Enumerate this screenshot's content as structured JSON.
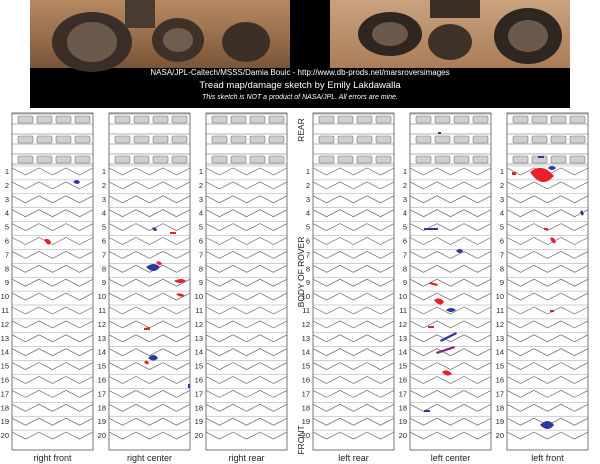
{
  "header": {
    "credit_line": "NASA/JPL-Caltech/MSSS/Damia Bouic - http://www.db-prods.net/marsroversimages",
    "title": "Tread map/damage sketch by Emily Lakdawalla",
    "disclaimer": "This sketch is NOT a product of NASA/JPL. All errors are mine."
  },
  "side_labels": {
    "rear": "REAR",
    "body": "BODY OF ROVER",
    "front": "FRONT"
  },
  "row_numbers": [
    "1",
    "2",
    "3",
    "4",
    "5",
    "6",
    "7",
    "8",
    "9",
    "10",
    "11",
    "12",
    "13",
    "14",
    "15",
    "16",
    "17",
    "18",
    "19",
    "20"
  ],
  "wheels": [
    {
      "id": "right-front",
      "label": "right front"
    },
    {
      "id": "right-center",
      "label": "right center"
    },
    {
      "id": "right-rear",
      "label": "right rear"
    },
    {
      "id": "left-rear",
      "label": "left rear"
    },
    {
      "id": "left-center",
      "label": "left center"
    },
    {
      "id": "left-front",
      "label": "left front"
    }
  ],
  "colors": {
    "damage_red": "#e8202a",
    "damage_blue": "#2b3a9a",
    "line": "#555555",
    "photo_bg": "#000000"
  }
}
